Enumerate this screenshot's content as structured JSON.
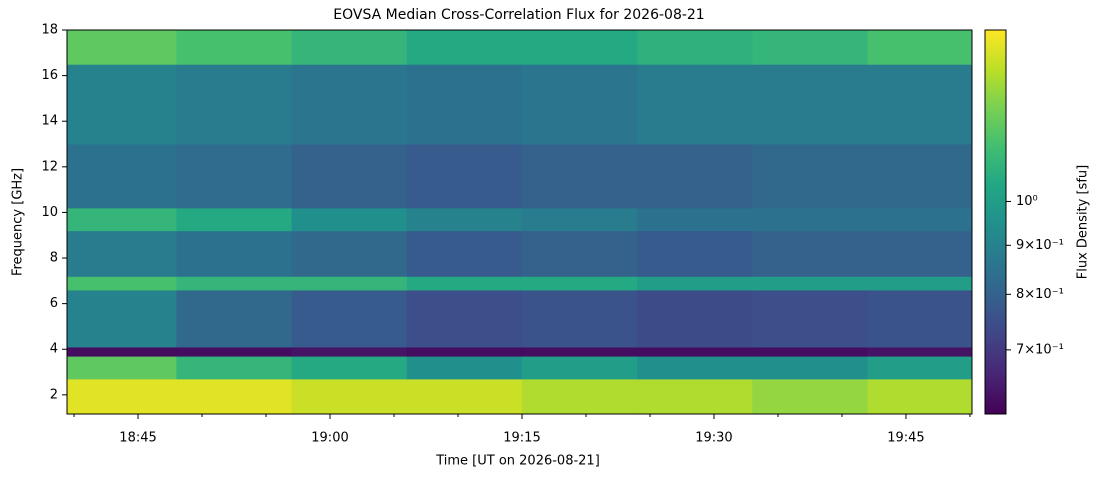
{
  "chart_data": {
    "type": "heatmap",
    "title": "EOVSA Median Cross-Correlation Flux for 2026-08-21",
    "xlabel": "Time [UT on 2026-08-21]",
    "ylabel": "Frequency [GHz]",
    "colorbar_label": "Flux Density [sfu]",
    "colormap": "viridis",
    "color_scale": "log",
    "clim": [
      0.6,
      1.51
    ],
    "cticks": [
      {
        "value": 1,
        "label": "10⁰"
      },
      {
        "value": 0.9,
        "label": "9×10⁻¹"
      },
      {
        "value": 0.8,
        "label": "8×10⁻¹"
      },
      {
        "value": 0.7,
        "label": "7×10⁻¹"
      }
    ],
    "xlim": [
      1119.45,
      1190.16
    ],
    "xticks": [
      {
        "value": 1125,
        "label": "18:45"
      },
      {
        "value": 1140,
        "label": "19:00"
      },
      {
        "value": 1155,
        "label": "19:15"
      },
      {
        "value": 1170,
        "label": "19:30"
      },
      {
        "value": 1185,
        "label": "19:45"
      }
    ],
    "xminorticks": [
      1120,
      1130,
      1135,
      1145,
      1150,
      1160,
      1165,
      1175,
      1180,
      1190
    ],
    "ylim": [
      1.16,
      18.0
    ],
    "yticks": [
      2,
      4,
      6,
      8,
      10,
      12,
      14,
      16,
      18
    ],
    "x_edges": [
      1119.45,
      1128,
      1137,
      1146,
      1155,
      1164,
      1173,
      1182,
      1190.16
    ],
    "y_edges": [
      1.16,
      2.7,
      3.7,
      4.1,
      6.6,
      7.2,
      9.2,
      10.2,
      13,
      16.5,
      18.0
    ],
    "z": [
      [
        1.45,
        1.45,
        1.4,
        1.4,
        1.35,
        1.35,
        1.3,
        1.35
      ],
      [
        1.2,
        1.1,
        1.05,
        0.95,
        1.0,
        0.95,
        0.95,
        1.0
      ],
      [
        0.62,
        0.62,
        0.63,
        0.62,
        0.62,
        0.62,
        0.62,
        0.63
      ],
      [
        0.9,
        0.82,
        0.78,
        0.75,
        0.76,
        0.74,
        0.75,
        0.76
      ],
      [
        1.15,
        1.1,
        1.1,
        1.05,
        1.05,
        1.0,
        1.0,
        1.0
      ],
      [
        0.88,
        0.85,
        0.82,
        0.78,
        0.8,
        0.78,
        0.8,
        0.8
      ],
      [
        1.1,
        1.05,
        0.95,
        0.9,
        0.88,
        0.85,
        0.85,
        0.85
      ],
      [
        0.85,
        0.83,
        0.8,
        0.78,
        0.8,
        0.8,
        0.82,
        0.82
      ],
      [
        0.9,
        0.88,
        0.86,
        0.85,
        0.86,
        0.88,
        0.88,
        0.88
      ],
      [
        1.2,
        1.15,
        1.1,
        1.05,
        1.05,
        1.08,
        1.1,
        1.15
      ]
    ]
  }
}
